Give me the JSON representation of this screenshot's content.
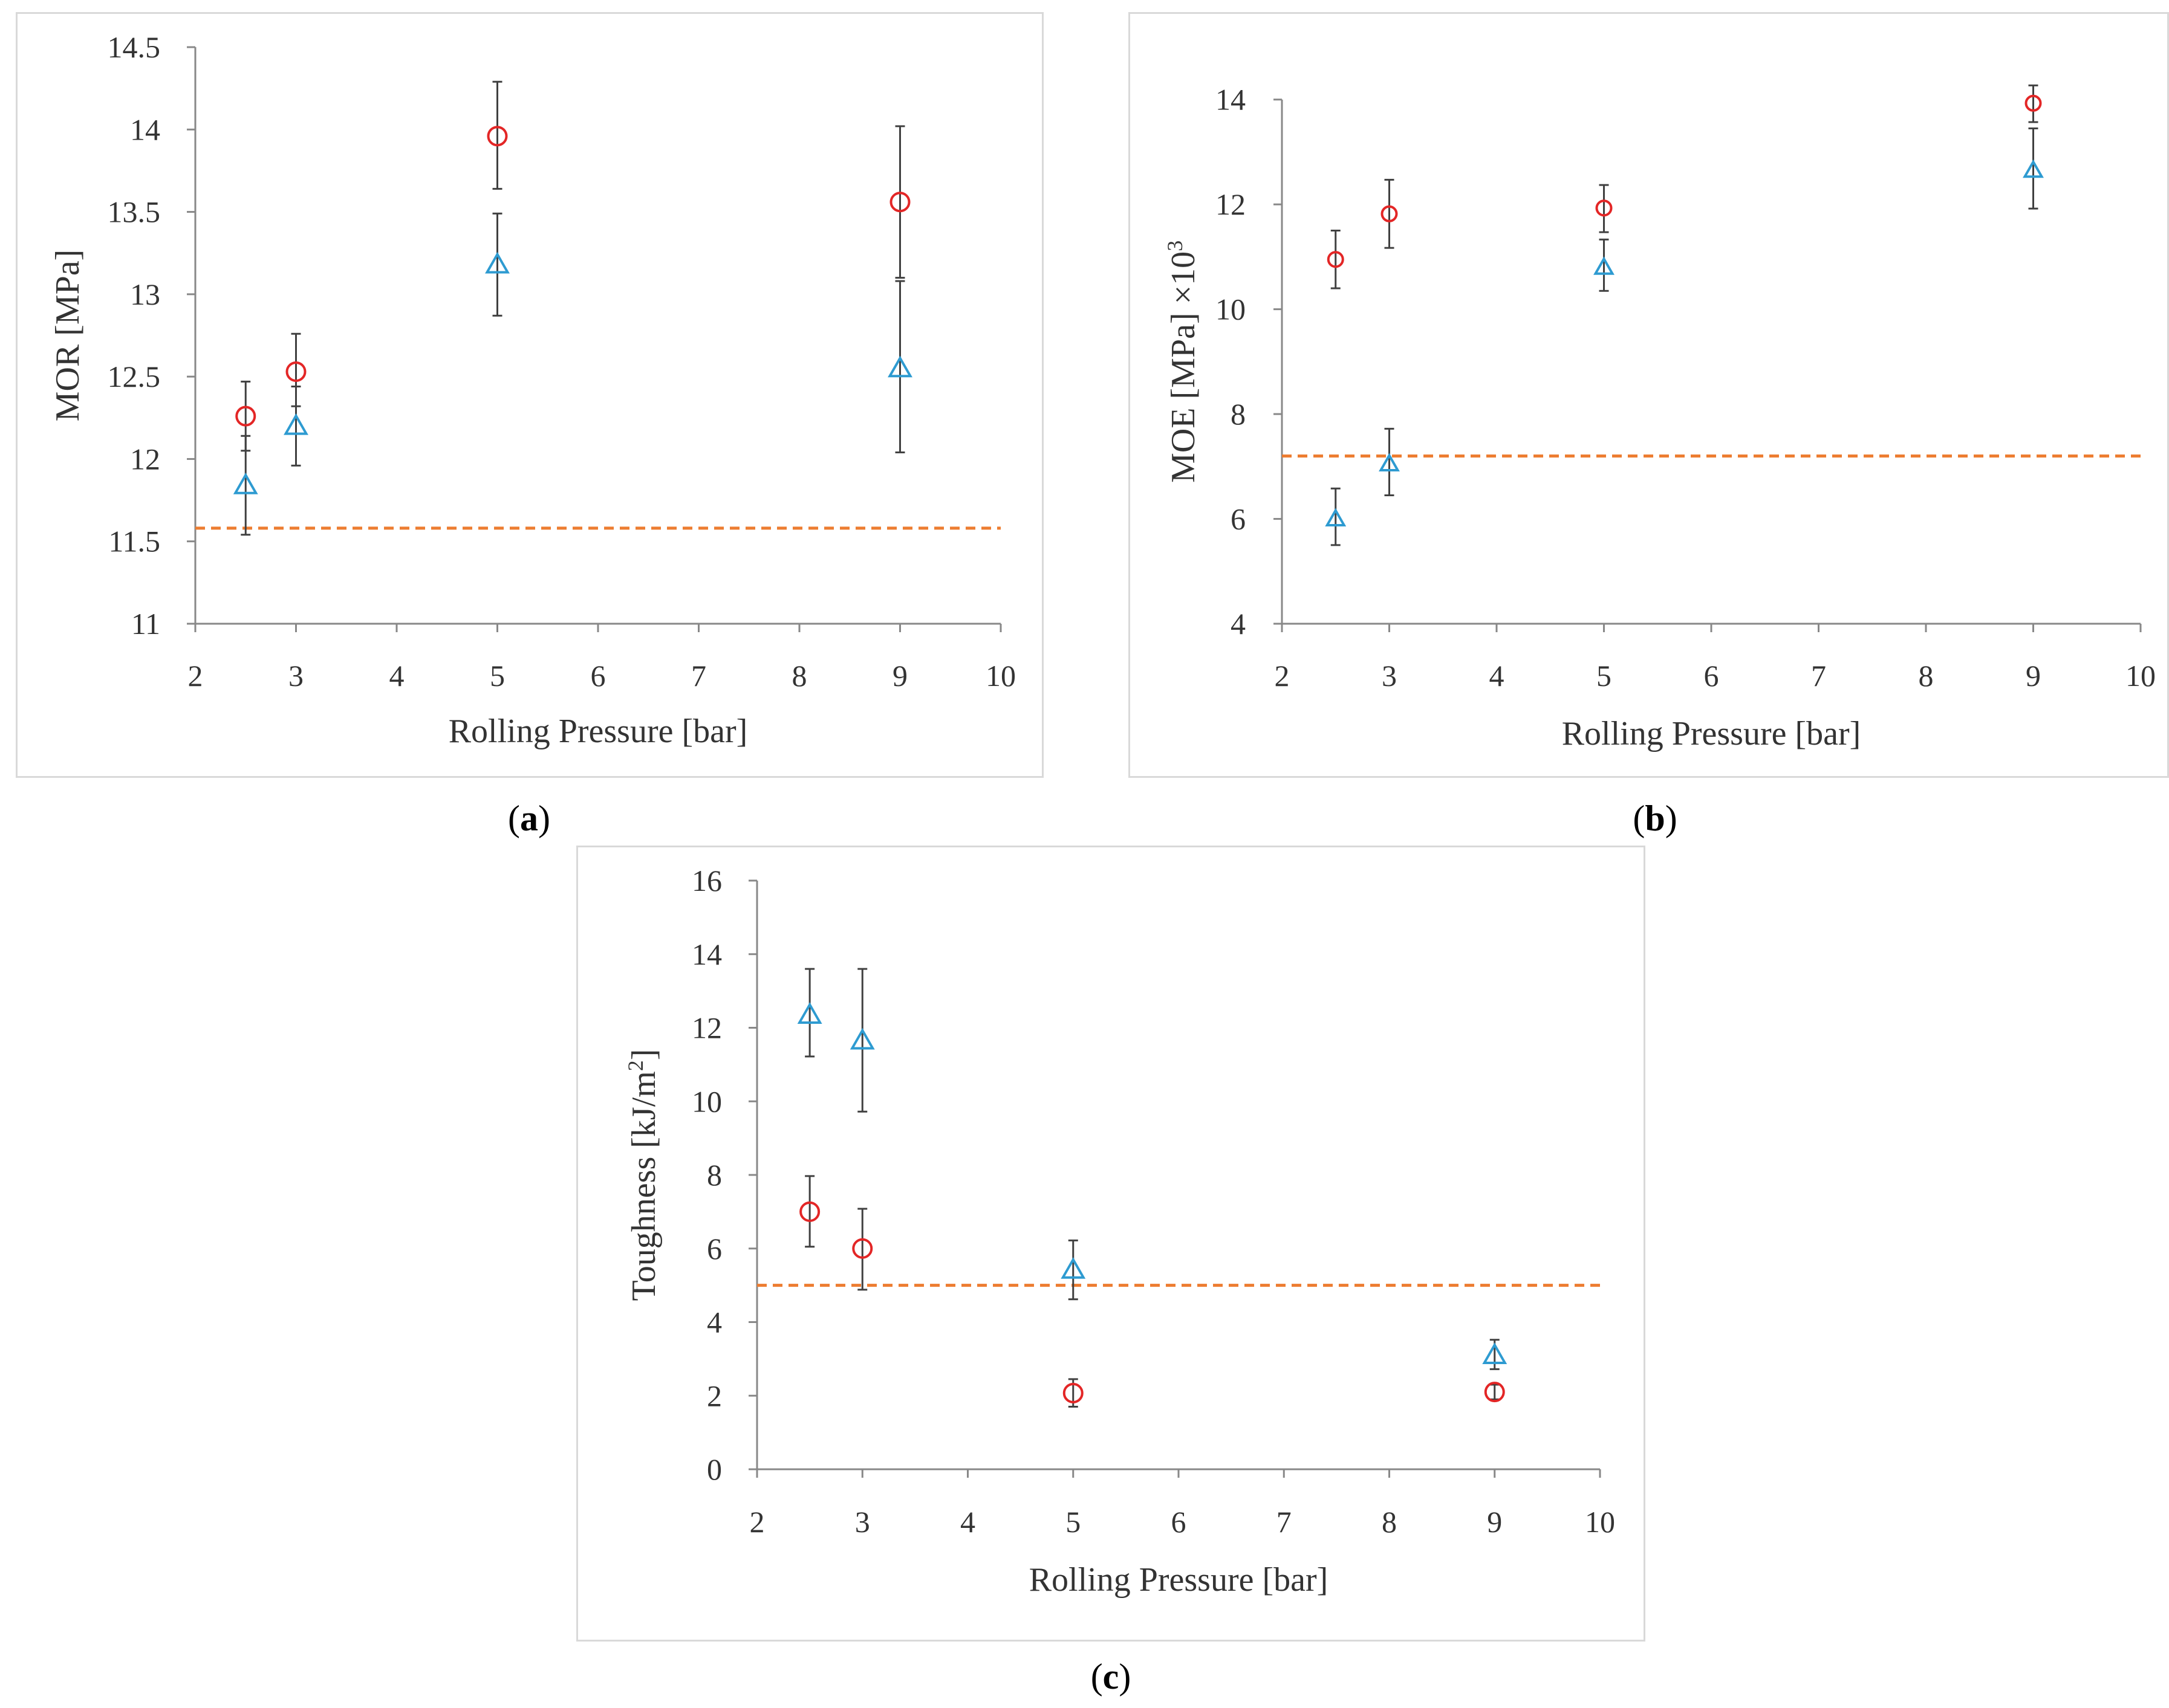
{
  "colors": {
    "red_series": "#e32626",
    "blue_series": "#2e9bd1",
    "baseline": "#ed7d31",
    "error_bar": "#404040",
    "axis": "#888888",
    "frame": "#d9d9d9"
  },
  "chart_data": [
    {
      "id": "a",
      "type": "scatter",
      "caption_letter": "a",
      "xlabel": "Rolling Pressure [bar]",
      "ylabel": "MOR [MPa]",
      "xlim": [
        2,
        10
      ],
      "ylim": [
        11,
        14.5
      ],
      "x_ticks": [
        "2",
        "3",
        "4",
        "5",
        "6",
        "7",
        "8",
        "9",
        "10"
      ],
      "y_ticks": [
        "11",
        "11.5",
        "12",
        "12.5",
        "13",
        "13.5",
        "14",
        "14.5"
      ],
      "grid": false,
      "baseline": 11.58,
      "series": [
        {
          "marker": "circle",
          "color_key": "red_series",
          "points": [
            {
              "x": 2.5,
              "y": 12.26,
              "err_low": 12.05,
              "err_high": 12.47
            },
            {
              "x": 3,
              "y": 12.53,
              "err_low": 12.32,
              "err_high": 12.76
            },
            {
              "x": 5,
              "y": 13.96,
              "err_low": 13.64,
              "err_high": 14.29
            },
            {
              "x": 9,
              "y": 13.56,
              "err_low": 13.1,
              "err_high": 14.02
            }
          ]
        },
        {
          "marker": "triangle",
          "color_key": "blue_series",
          "points": [
            {
              "x": 2.5,
              "y": 11.84,
              "err_low": 11.54,
              "err_high": 12.14
            },
            {
              "x": 3,
              "y": 12.2,
              "err_low": 11.96,
              "err_high": 12.44
            },
            {
              "x": 5,
              "y": 13.18,
              "err_low": 12.87,
              "err_high": 13.49
            },
            {
              "x": 9,
              "y": 12.55,
              "err_low": 12.04,
              "err_high": 13.08
            }
          ]
        }
      ]
    },
    {
      "id": "b",
      "type": "scatter",
      "caption_letter": "b",
      "xlabel": "Rolling Pressure [bar]",
      "ylabel": "MOE [MPa] ×10",
      "ylabel_sup": "3",
      "xlim": [
        2,
        10
      ],
      "ylim": [
        4,
        15
      ],
      "x_ticks": [
        "2",
        "3",
        "4",
        "5",
        "6",
        "7",
        "8",
        "9",
        "10"
      ],
      "y_ticks": [
        "4",
        "6",
        "8",
        "10",
        "12",
        "14"
      ],
      "grid": false,
      "baseline": 7.2,
      "series": [
        {
          "marker": "circle",
          "color_key": "red_series",
          "points": [
            {
              "x": 2.5,
              "y": 10.95,
              "err_low": 10.4,
              "err_high": 11.5
            },
            {
              "x": 3,
              "y": 11.82,
              "err_low": 11.17,
              "err_high": 12.47
            },
            {
              "x": 5,
              "y": 11.93,
              "err_low": 11.47,
              "err_high": 12.37
            },
            {
              "x": 9,
              "y": 13.93,
              "err_low": 13.57,
              "err_high": 14.27
            }
          ]
        },
        {
          "marker": "triangle",
          "color_key": "blue_series",
          "points": [
            {
              "x": 2.5,
              "y": 6.0,
              "err_low": 5.5,
              "err_high": 6.58
            },
            {
              "x": 3,
              "y": 7.05,
              "err_low": 6.45,
              "err_high": 7.72
            },
            {
              "x": 5,
              "y": 10.8,
              "err_low": 10.35,
              "err_high": 11.33
            },
            {
              "x": 9,
              "y": 12.65,
              "err_low": 11.92,
              "err_high": 13.45
            }
          ]
        }
      ]
    },
    {
      "id": "c",
      "type": "scatter",
      "caption_letter": "c",
      "xlabel": "Rolling Pressure [bar]",
      "ylabel": "Toughness [kJ/m",
      "ylabel_sup": "2",
      "ylabel_suffix": "]",
      "xlim": [
        2,
        10
      ],
      "ylim": [
        0,
        16
      ],
      "x_ticks": [
        "2",
        "3",
        "4",
        "5",
        "6",
        "7",
        "8",
        "9",
        "10"
      ],
      "y_ticks": [
        "0",
        "2",
        "4",
        "6",
        "8",
        "10",
        "12",
        "14",
        "16"
      ],
      "grid": false,
      "baseline": 5.0,
      "series": [
        {
          "marker": "circle",
          "color_key": "red_series",
          "points": [
            {
              "x": 2.5,
              "y": 7.0,
              "err_low": 6.05,
              "err_high": 7.97
            },
            {
              "x": 3,
              "y": 6.0,
              "err_low": 4.88,
              "err_high": 7.08
            },
            {
              "x": 5,
              "y": 2.07,
              "err_low": 1.7,
              "err_high": 2.45
            },
            {
              "x": 9,
              "y": 2.1,
              "err_low": 1.9,
              "err_high": 2.3
            }
          ]
        },
        {
          "marker": "triangle",
          "color_key": "blue_series",
          "points": [
            {
              "x": 2.5,
              "y": 12.35,
              "err_low": 11.22,
              "err_high": 13.6
            },
            {
              "x": 3,
              "y": 11.65,
              "err_low": 9.72,
              "err_high": 13.6
            },
            {
              "x": 5,
              "y": 5.42,
              "err_low": 4.62,
              "err_high": 6.22
            },
            {
              "x": 9,
              "y": 3.1,
              "err_low": 2.72,
              "err_high": 3.52
            }
          ]
        }
      ]
    }
  ]
}
